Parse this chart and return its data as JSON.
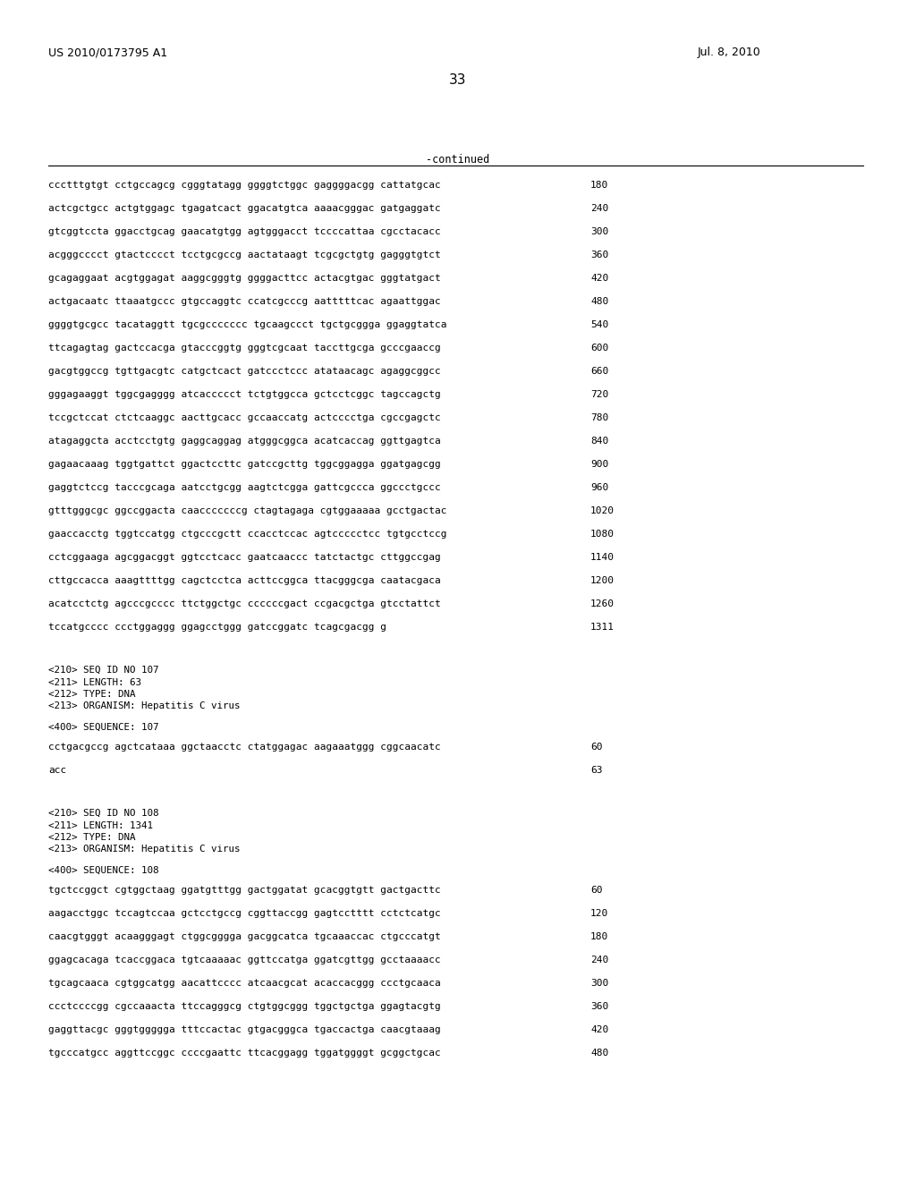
{
  "patent_number": "US 2010/0173795 A1",
  "date": "Jul. 8, 2010",
  "page_number": "33",
  "continued_label": "-continued",
  "background_color": "#ffffff",
  "text_color": "#000000",
  "sequence_lines": [
    [
      "ccctttgtgt cctgccagcg cgggtatagg ggggtctggc gaggggacgg cattatgcac",
      "180"
    ],
    [
      "actcgctgcc actgtggagc tgagatcact ggacatgtca aaaacgggac gatgaggatc",
      "240"
    ],
    [
      "gtcggtccta ggacctgcag gaacatgtgg agtgggacct tccccattaa cgcctacacc",
      "300"
    ],
    [
      "acgggcccct gtactcccct tcctgcgccg aactataagt tcgcgctgtg gagggtgtct",
      "360"
    ],
    [
      "gcagaggaat acgtggagat aaggcgggtg ggggacttcc actacgtgac gggtatgact",
      "420"
    ],
    [
      "actgacaatc ttaaatgccc gtgccaggtc ccatcgcccg aatttttcac agaattggac",
      "480"
    ],
    [
      "ggggtgcgcc tacataggtt tgcgccccccc tgcaagccct tgctgcggga ggaggtatca",
      "540"
    ],
    [
      "ttcagagtag gactccacga gtacccggtg gggtcgcaat taccttgcga gcccgaaccg",
      "600"
    ],
    [
      "gacgtggccg tgttgacgtc catgctcact gatccctccc atataacagc agaggcggcc",
      "660"
    ],
    [
      "gggagaaggt tggcgagggg atcaccccct tctgtggcca gctcctcggc tagccagctg",
      "720"
    ],
    [
      "tccgctccat ctctcaaggc aacttgcacc gccaaccatg actcccctga cgccgagctc",
      "780"
    ],
    [
      "atagaggcta acctcctgtg gaggcaggag atgggcggca acatcaccag ggttgagtca",
      "840"
    ],
    [
      "gagaacaaag tggtgattct ggactccttc gatccgcttg tggcggagga ggatgagcgg",
      "900"
    ],
    [
      "gaggtctccg tacccgcaga aatcctgcgg aagtctcgga gattcgccca ggccctgccc",
      "960"
    ],
    [
      "gtttgggcgc ggccggacta caacccccccg ctagtagaga cgtggaaaaa gcctgactac",
      "1020"
    ],
    [
      "gaaccacctg tggtccatgg ctgcccgctt ccacctccac agtccccctcc tgtgcctccg",
      "1080"
    ],
    [
      "cctcggaaga agcggacggt ggtcctcacc gaatcaaccc tatctactgc cttggccgag",
      "1140"
    ],
    [
      "cttgccacca aaagttttgg cagctcctca acttccggca ttacgggcga caatacgaca",
      "1200"
    ],
    [
      "acatcctctg agcccgcccc ttctggctgc ccccccgact ccgacgctga gtcctattct",
      "1260"
    ],
    [
      "tccatgcccc ccctggaggg ggagcctggg gatccggatc tcagcgacgg g",
      "1311"
    ]
  ],
  "metadata_107": [
    "<210> SEQ ID NO 107",
    "<211> LENGTH: 63",
    "<212> TYPE: DNA",
    "<213> ORGANISM: Hepatitis C virus"
  ],
  "sequence_label_107": "<400> SEQUENCE: 107",
  "seq107_lines": [
    [
      "cctgacgccg agctcataaa ggctaacctc ctatggagac aagaaatggg cggcaacatc",
      "60"
    ],
    [
      "acc",
      "63"
    ]
  ],
  "metadata_108": [
    "<210> SEQ ID NO 108",
    "<211> LENGTH: 1341",
    "<212> TYPE: DNA",
    "<213> ORGANISM: Hepatitis C virus"
  ],
  "sequence_label_108": "<400> SEQUENCE: 108",
  "seq108_lines": [
    [
      "tgctccggct cgtggctaag ggatgtttgg gactggatat gcacggtgtt gactgacttc",
      "60"
    ],
    [
      "aagacctggc tccagtccaa gctcctgccg cggttaccgg gagtcctttt cctctcatgc",
      "120"
    ],
    [
      "caacgtgggt acaagggagt ctggcgggga gacggcatca tgcaaaccac ctgcccatgt",
      "180"
    ],
    [
      "ggagcacaga tcaccggaca tgtcaaaaac ggttccatga ggatcgttgg gcctaaaacc",
      "240"
    ],
    [
      "tgcagcaaca cgtggcatgg aacattcccc atcaacgcat acaccacggg ccctgcaaca",
      "300"
    ],
    [
      "ccctccccgg cgccaaacta ttccagggcg ctgtggcggg tggctgctga ggagtacgtg",
      "360"
    ],
    [
      "gaggttacgc gggtggggga tttccactac gtgacgggca tgaccactga caacgtaaag",
      "420"
    ],
    [
      "tgcccatgcc aggttccggc ccccgaattc ttcacggagg tggatggggt gcggctgcac",
      "480"
    ]
  ]
}
